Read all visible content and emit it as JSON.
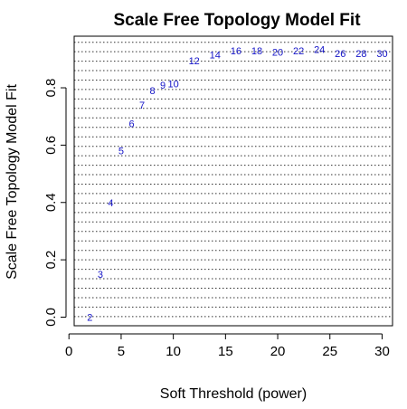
{
  "chart_data": {
    "type": "scatter",
    "title": "Scale Free Topology Model Fit",
    "xlabel": "Soft Threshold (power)",
    "ylabel": "Scale Free Topology Model Fit",
    "xlim": [
      0.5,
      31
    ],
    "ylim": [
      -0.03,
      0.98
    ],
    "x_ticks": [
      0,
      5,
      10,
      15,
      20,
      25,
      30
    ],
    "y_ticks": [
      0.0,
      0.2,
      0.4,
      0.6,
      0.8
    ],
    "grid": "horizontal dotted lines",
    "point_color": "#1414c8",
    "points": [
      {
        "label": "2",
        "x": 2,
        "y": 0.0
      },
      {
        "label": "3",
        "x": 3,
        "y": 0.15
      },
      {
        "label": "4",
        "x": 4,
        "y": 0.4
      },
      {
        "label": "5",
        "x": 5,
        "y": 0.58
      },
      {
        "label": "6",
        "x": 6,
        "y": 0.675
      },
      {
        "label": "7",
        "x": 7,
        "y": 0.74
      },
      {
        "label": "8",
        "x": 8,
        "y": 0.79
      },
      {
        "label": "9",
        "x": 9,
        "y": 0.81
      },
      {
        "label": "10",
        "x": 10,
        "y": 0.815
      },
      {
        "label": "12",
        "x": 12,
        "y": 0.895
      },
      {
        "label": "14",
        "x": 14,
        "y": 0.915
      },
      {
        "label": "16",
        "x": 16,
        "y": 0.93
      },
      {
        "label": "18",
        "x": 18,
        "y": 0.93
      },
      {
        "label": "20",
        "x": 20,
        "y": 0.925
      },
      {
        "label": "22",
        "x": 22,
        "y": 0.93
      },
      {
        "label": "24",
        "x": 24,
        "y": 0.935
      },
      {
        "label": "26",
        "x": 26,
        "y": 0.92
      },
      {
        "label": "28",
        "x": 28,
        "y": 0.92
      },
      {
        "label": "30",
        "x": 30,
        "y": 0.92
      }
    ]
  }
}
